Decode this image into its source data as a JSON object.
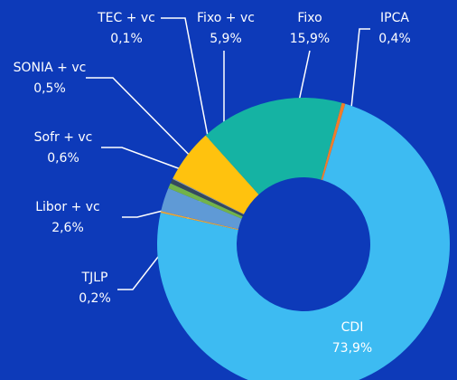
{
  "chart_data": {
    "type": "donut",
    "categories": [
      "IPCA",
      "CDI",
      "TJLP",
      "Libor + vc",
      "Sofr + vc",
      "SONIA + vc",
      "TEC + vc",
      "Fixo + vc",
      "Fixo"
    ],
    "values": [
      0.4,
      73.9,
      0.2,
      2.6,
      0.6,
      0.5,
      0.1,
      5.9,
      15.9
    ],
    "value_labels": [
      "0,4%",
      "73,9%",
      "0,2%",
      "2,6%",
      "0,6%",
      "0,5%",
      "0,1%",
      "5,9%",
      "15,9%"
    ],
    "colors": [
      "#f07d2a",
      "#3dbbf2",
      "#e9a83a",
      "#5f9ad6",
      "#72b34a",
      "#34495e",
      "#9aa3ad",
      "#ffc20e",
      "#15b3a3"
    ]
  }
}
